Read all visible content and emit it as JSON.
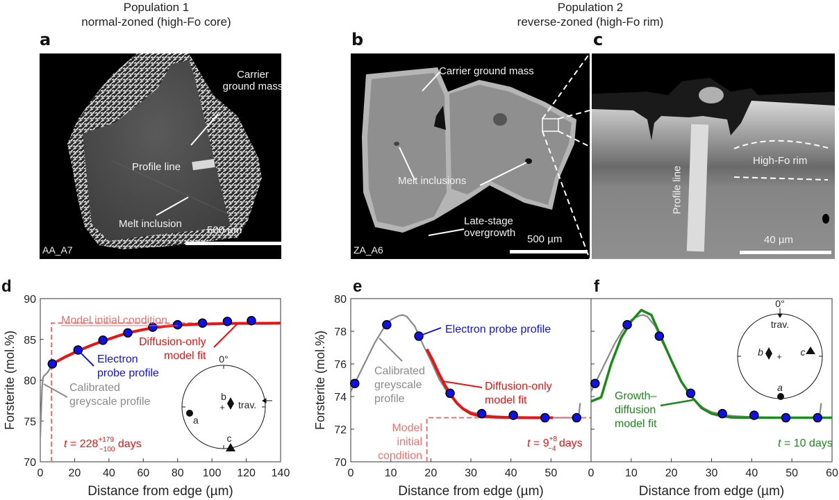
{
  "header": {
    "population1": {
      "line1": "Population 1",
      "line2": "normal-zoned (high-Fo core)"
    },
    "population2": {
      "line1": "Population 2",
      "line2": "reverse-zoned (high-Fo rim)"
    }
  },
  "panels": {
    "a": {
      "letter": "a",
      "sample_id": "AA_A7",
      "labels": {
        "carrier1": "Carrier",
        "carrier2": "ground mass",
        "profile": "Profile line",
        "melt": "Melt inclusion"
      },
      "scale_bar": "500 µm"
    },
    "b": {
      "letter": "b",
      "sample_id": "ZA_A6",
      "labels": {
        "carrier": "Carrier ground mass",
        "melt": "Melt inclusions",
        "late1": "Late-stage",
        "late2": "overgrowth"
      },
      "scale_bar": "500 µm"
    },
    "c": {
      "letter": "c",
      "labels": {
        "profile": "Profile line",
        "rim": "High-Fo rim"
      },
      "scale_bar": "40 µm"
    }
  },
  "colors": {
    "epma": "#1010ee",
    "diffusion_fit": "#ee1111",
    "initial_condition": "#f07070",
    "greyscale": "#8a8a8a",
    "growth_fit": "#1a8a1a"
  },
  "chart_data": [
    {
      "id": "d",
      "letter": "d",
      "type": "line",
      "xlabel": "Distance from edge (µm)",
      "ylabel": "Forsterite (mol.%)",
      "xlim": [
        0,
        140
      ],
      "ylim": [
        70,
        90
      ],
      "xticks": [
        0,
        20,
        40,
        60,
        80,
        100,
        120,
        140
      ],
      "yticks": [
        70,
        75,
        80,
        85,
        90
      ],
      "series": [
        {
          "name": "Calibrated greyscale profile",
          "kind": "greyscale",
          "x": [
            0,
            0.5,
            1,
            1.5,
            2,
            3,
            4,
            5,
            6,
            7
          ],
          "y": [
            73,
            76,
            79,
            80.2,
            80.5,
            80.7,
            80.9,
            81.2,
            81.6,
            82.0
          ]
        },
        {
          "name": "Model initial condition",
          "kind": "initial",
          "x": [
            6.5,
            6.5,
            140
          ],
          "y": [
            70,
            87,
            87
          ]
        },
        {
          "name": "Diffusion-only model fit",
          "kind": "diffusion",
          "x": [
            7,
            15,
            22,
            30,
            36.5,
            45,
            51,
            60,
            65.5,
            72,
            80,
            90,
            100,
            110,
            120,
            130,
            140
          ],
          "y": [
            82.0,
            82.9,
            83.6,
            84.3,
            84.8,
            85.4,
            85.8,
            86.2,
            86.4,
            86.6,
            86.75,
            86.85,
            86.9,
            86.95,
            86.97,
            86.98,
            87.0
          ]
        },
        {
          "name": "Electron probe profile",
          "kind": "epma",
          "x": [
            7,
            22,
            36.5,
            51,
            65.5,
            80,
            94.5,
            109,
            123
          ],
          "y": [
            82.0,
            83.7,
            84.9,
            85.8,
            86.5,
            86.8,
            87.0,
            87.2,
            87.3
          ]
        }
      ],
      "annotations": {
        "initial": "Model initial condition",
        "diffusion1": "Diffusion-only",
        "diffusion2": "model fit",
        "epma1": "Electron",
        "epma2": "probe profile",
        "grey1": "Calibrated",
        "grey2": "greyscale profile",
        "time_prefix": "t",
        "time_value": " = 228",
        "time_sup": "+179",
        "time_sub": "−100",
        "time_unit": " days"
      },
      "stereonet": {
        "zero_label": "0°",
        "trav_label": "trav.",
        "a_label": "a",
        "b_label": "b",
        "c_label": "c"
      }
    },
    {
      "id": "e",
      "letter": "e",
      "type": "line",
      "xlabel": "Distance from edge (µm)",
      "ylabel": "Forsterite (mol.%)",
      "xlim": [
        0,
        60
      ],
      "ylim": [
        70,
        80
      ],
      "xticks": [
        0,
        10,
        20,
        30,
        40,
        50
      ],
      "yticks": [
        70,
        72,
        74,
        76,
        78,
        80
      ],
      "series": [
        {
          "name": "Calibrated greyscale profile",
          "kind": "greyscale",
          "x": [
            0,
            2,
            4,
            6,
            8,
            10,
            12,
            13,
            14,
            16,
            18,
            20,
            22,
            24,
            26,
            28,
            30,
            32,
            34,
            36,
            40,
            45,
            50,
            55,
            56.5,
            57,
            57.3
          ],
          "y": [
            74.3,
            75.3,
            76.3,
            77.3,
            78.1,
            78.7,
            78.95,
            79.0,
            78.9,
            78.3,
            77.2,
            76.2,
            75.1,
            74.3,
            73.7,
            73.3,
            73.05,
            72.95,
            72.85,
            72.8,
            72.75,
            72.72,
            72.7,
            72.7,
            72.7,
            73.0,
            73.6
          ]
        },
        {
          "name": "Model initial condition",
          "kind": "initial",
          "x": [
            19,
            19,
            60
          ],
          "y": [
            70,
            72.7,
            72.7
          ]
        },
        {
          "name": "Diffusion-only model fit",
          "kind": "diffusion",
          "x": [
            19,
            20.5,
            22,
            23.5,
            25,
            26.5,
            28,
            30,
            32,
            34,
            36,
            40,
            45,
            50.5
          ],
          "y": [
            76.9,
            76.2,
            75.4,
            74.7,
            74.1,
            73.6,
            73.25,
            72.95,
            72.82,
            72.76,
            72.73,
            72.71,
            72.7,
            72.7
          ]
        },
        {
          "name": "Electron probe profile",
          "kind": "epma",
          "x": [
            1,
            9,
            17,
            24.8,
            32.7,
            40.6,
            48.5,
            56.4
          ],
          "y": [
            74.8,
            78.4,
            77.7,
            74.2,
            72.95,
            72.85,
            72.7,
            72.7
          ]
        }
      ],
      "annotations": {
        "epma": "Electron probe profile",
        "grey1": "Calibrated",
        "grey2": "greyscale",
        "grey3": "profile",
        "diffusion1": "Diffusion-only",
        "diffusion2": "model fit",
        "initial1": "Model",
        "initial2": "initial",
        "initial3": "condition",
        "time_prefix": "t",
        "time_value": " = 9",
        "time_sup": "+8",
        "time_sub": "−4",
        "time_unit": " days"
      }
    },
    {
      "id": "f",
      "letter": "f",
      "type": "line",
      "xlabel": "Distance from edge (µm)",
      "xlim": [
        0,
        60
      ],
      "ylim": [
        70,
        80
      ],
      "xticks": [
        0,
        10,
        20,
        30,
        40,
        50,
        60
      ],
      "yticks": [
        70,
        72,
        74,
        76,
        78,
        80
      ],
      "series": [
        {
          "name": "Calibrated greyscale profile",
          "kind": "greyscale",
          "x": [
            0,
            2,
            4,
            6,
            8,
            10,
            12,
            13,
            14,
            16,
            18,
            20,
            22,
            24,
            26,
            28,
            30,
            32,
            34,
            36,
            40,
            45,
            50,
            55,
            56.5,
            57,
            57.3
          ],
          "y": [
            74.3,
            75.3,
            76.3,
            77.3,
            78.1,
            78.7,
            78.95,
            79.0,
            78.9,
            78.3,
            77.2,
            76.2,
            75.1,
            74.3,
            73.7,
            73.3,
            73.05,
            72.95,
            72.85,
            72.8,
            72.75,
            72.72,
            72.7,
            72.7,
            72.7,
            73.0,
            73.6
          ]
        },
        {
          "name": "Growth–diffusion model fit",
          "kind": "growth",
          "x": [
            0,
            2.5,
            5,
            7.5,
            10,
            12.5,
            15,
            17.5,
            20,
            22.5,
            25,
            27.5,
            30,
            32.5,
            35,
            40,
            45,
            50,
            55,
            60
          ],
          "y": [
            73.7,
            73.95,
            76.0,
            77.6,
            78.6,
            79.3,
            79.0,
            77.6,
            76.2,
            74.9,
            74.0,
            73.3,
            72.95,
            72.8,
            72.72,
            72.7,
            72.7,
            72.7,
            72.7,
            72.7
          ]
        },
        {
          "name": "Electron probe profile",
          "kind": "epma",
          "x": [
            1,
            9,
            17,
            24.8,
            32.7,
            40.6,
            48.5,
            56.4
          ],
          "y": [
            74.8,
            78.4,
            77.7,
            74.2,
            72.95,
            72.85,
            72.7,
            72.7
          ]
        }
      ],
      "annotations": {
        "growth1": "Growth–",
        "growth2": "diffusion",
        "growth3": "model fit",
        "time_prefix": "t",
        "time_value": " = 10 days"
      },
      "stereonet": {
        "zero_label": "0°",
        "trav_label": "trav.",
        "a_label": "a",
        "b_label": "b",
        "c_label": "c"
      }
    }
  ]
}
